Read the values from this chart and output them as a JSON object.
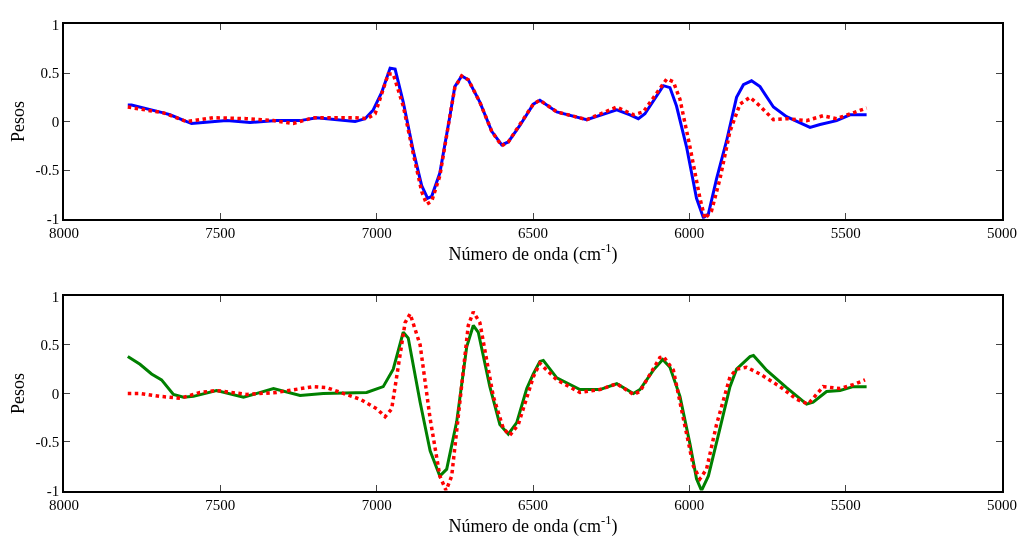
{
  "chart_data": [
    {
      "type": "line",
      "xlabel": "Número de onda (cm$^{-1}$)",
      "ylabel": "Pesos",
      "xlim": [
        8000,
        5000
      ],
      "xticks": [
        8000,
        7500,
        7000,
        6500,
        6000,
        5500,
        5000
      ],
      "ylim": [
        -1,
        1
      ],
      "yticks": [
        -1,
        -0.5,
        0,
        0.5,
        1
      ],
      "grid": false,
      "series": [
        {
          "color": "#0000ff",
          "line_style": "solid",
          "x": [
            7796,
            7784,
            7682,
            7661,
            7592,
            7480,
            7405,
            7320,
            7245,
            7192,
            7069,
            7037,
            7011,
            6984,
            6957,
            6941,
            6915,
            6883,
            6856,
            6837,
            6824,
            6798,
            6765,
            6750,
            6728,
            6707,
            6670,
            6632,
            6600,
            6579,
            6542,
            6499,
            6478,
            6424,
            6328,
            6232,
            6190,
            6163,
            6142,
            6083,
            6062,
            6041,
            6009,
            5977,
            5955,
            5939,
            5913,
            5881,
            5849,
            5827,
            5801,
            5774,
            5731,
            5689,
            5614,
            5582,
            5529,
            5486,
            5433
          ],
          "values": [
            0.17,
            0.17,
            0.09,
            0.07,
            -0.02,
            0.01,
            -0.01,
            0.01,
            0.01,
            0.04,
            0,
            0.03,
            0.12,
            0.3,
            0.55,
            0.54,
            0.2,
            -0.3,
            -0.66,
            -0.79,
            -0.77,
            -0.53,
            0.07,
            0.36,
            0.47,
            0.43,
            0.2,
            -0.1,
            -0.24,
            -0.21,
            -0.04,
            0.18,
            0.22,
            0.1,
            0.02,
            0.12,
            0.07,
            0.03,
            0.08,
            0.37,
            0.35,
            0.16,
            -0.26,
            -0.79,
            -0.99,
            -0.95,
            -0.59,
            -0.2,
            0.25,
            0.38,
            0.42,
            0.36,
            0.15,
            0.05,
            -0.06,
            -0.03,
            0.01,
            0.07,
            0.07
          ]
        },
        {
          "color": "#ff0000",
          "line_style": "dotted",
          "x": [
            7796,
            7682,
            7608,
            7522,
            7416,
            7330,
            7267,
            7203,
            7075,
            7032,
            7005,
            6963,
            6947,
            6915,
            6883,
            6856,
            6840,
            6824,
            6798,
            6765,
            6750,
            6728,
            6707,
            6670,
            6632,
            6600,
            6579,
            6542,
            6499,
            6478,
            6424,
            6328,
            6232,
            6179,
            6147,
            6072,
            6051,
            6030,
            5998,
            5966,
            5950,
            5929,
            5902,
            5870,
            5838,
            5806,
            5774,
            5731,
            5689,
            5625,
            5572,
            5529,
            5476,
            5433
          ],
          "values": [
            0.15,
            0.09,
            0,
            0.04,
            0.03,
            0.01,
            -0.02,
            0.04,
            0.04,
            0.03,
            0.08,
            0.49,
            0.49,
            0.16,
            -0.33,
            -0.72,
            -0.85,
            -0.82,
            -0.56,
            0.07,
            0.35,
            0.47,
            0.43,
            0.2,
            -0.1,
            -0.25,
            -0.21,
            -0.03,
            0.18,
            0.22,
            0.1,
            0.02,
            0.15,
            0.07,
            0.1,
            0.44,
            0.41,
            0.23,
            -0.26,
            -0.79,
            -1.0,
            -0.92,
            -0.59,
            -0.1,
            0.18,
            0.25,
            0.16,
            0.02,
            0.03,
            0.01,
            0.06,
            0.03,
            0.09,
            0.14
          ]
        }
      ]
    },
    {
      "type": "line",
      "xlabel": "Número de onda (cm$^{-1}$)",
      "ylabel": "Pesos",
      "xlim": [
        8000,
        5000
      ],
      "xticks": [
        8000,
        7500,
        7000,
        6500,
        6000,
        5500,
        5000
      ],
      "ylim": [
        -1,
        1
      ],
      "yticks": [
        -1,
        -0.5,
        0,
        0.5,
        1
      ],
      "grid": false,
      "series": [
        {
          "color": "#008000",
          "line_style": "solid",
          "x": [
            7796,
            7757,
            7720,
            7688,
            7650,
            7618,
            7586,
            7512,
            7426,
            7330,
            7245,
            7171,
            7032,
            6979,
            6947,
            6915,
            6899,
            6861,
            6829,
            6798,
            6776,
            6744,
            6712,
            6691,
            6675,
            6638,
            6606,
            6579,
            6552,
            6520,
            6499,
            6478,
            6467,
            6424,
            6350,
            6286,
            6232,
            6179,
            6158,
            6115,
            6085,
            6062,
            6030,
            5998,
            5977,
            5961,
            5939,
            5902,
            5870,
            5849,
            5806,
            5795,
            5753,
            5689,
            5625,
            5604,
            5561,
            5518,
            5476,
            5433
          ],
          "values": [
            0.38,
            0.3,
            0.2,
            0.14,
            -0.01,
            -0.04,
            -0.03,
            0.03,
            -0.04,
            0.05,
            -0.02,
            0,
            0.01,
            0.07,
            0.25,
            0.63,
            0.57,
            -0.09,
            -0.59,
            -0.85,
            -0.78,
            -0.29,
            0.48,
            0.7,
            0.63,
            0.07,
            -0.32,
            -0.42,
            -0.3,
            0.05,
            0.2,
            0.33,
            0.34,
            0.16,
            0.04,
            0.04,
            0.1,
            0,
            0.04,
            0.24,
            0.35,
            0.27,
            -0.03,
            -0.52,
            -0.88,
            -1.0,
            -0.85,
            -0.36,
            0.07,
            0.25,
            0.38,
            0.39,
            0.24,
            0.06,
            -0.11,
            -0.09,
            0.02,
            0.03,
            0.07,
            0.07
          ]
        },
        {
          "color": "#ff0000",
          "line_style": "dotted",
          "x": [
            7796,
            7757,
            7693,
            7629,
            7565,
            7512,
            7416,
            7320,
            7203,
            7160,
            7053,
            6999,
            6973,
            6952,
            6925,
            6909,
            6893,
            6861,
            6829,
            6798,
            6778,
            6760,
            6734,
            6707,
            6691,
            6670,
            6627,
            6595,
            6574,
            6547,
            6499,
            6478,
            6424,
            6350,
            6286,
            6232,
            6179,
            6158,
            6094,
            6083,
            6051,
            6019,
            5987,
            5966,
            5945,
            5913,
            5870,
            5849,
            5817,
            5774,
            5710,
            5657,
            5620,
            5572,
            5518,
            5476,
            5438
          ],
          "values": [
            0,
            0,
            -0.03,
            -0.05,
            0.01,
            0.03,
            -0.01,
            0.01,
            0.07,
            0.06,
            -0.06,
            -0.16,
            -0.24,
            -0.16,
            0.4,
            0.73,
            0.82,
            0.5,
            -0.26,
            -0.85,
            -1.0,
            -0.85,
            -0.09,
            0.7,
            0.84,
            0.73,
            -0.03,
            -0.36,
            -0.43,
            -0.32,
            0.17,
            0.31,
            0.14,
            0.01,
            0.04,
            0.1,
            -0.01,
            0.02,
            0.37,
            0.38,
            0.24,
            -0.26,
            -0.75,
            -0.88,
            -0.78,
            -0.32,
            0.17,
            0.25,
            0.27,
            0.2,
            0.07,
            -0.06,
            -0.11,
            0.07,
            0.05,
            0.09,
            0.14
          ]
        }
      ]
    }
  ]
}
